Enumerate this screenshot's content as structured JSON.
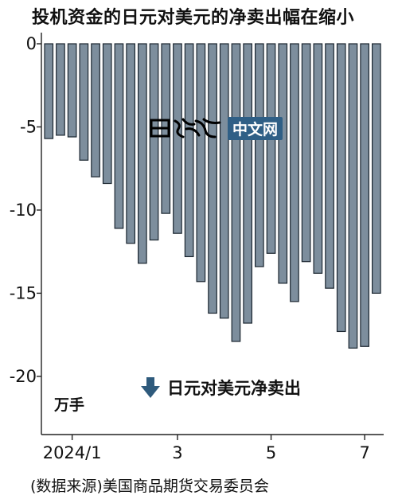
{
  "title": "投机资金的日元对美元的净卖出幅在缩小",
  "unit_label": "万手",
  "legend_label": "日元对美元净卖出",
  "source_note": "(数据来源)美国商品期货交易委员会",
  "watermark": {
    "logo_text": "日經",
    "tag_text": "中文网"
  },
  "chart_data": {
    "type": "bar",
    "title": "投机资金的日元对美元的净卖出幅在缩小",
    "xlabel": "",
    "ylabel": "万手",
    "ylim": [
      -23.5,
      0
    ],
    "yticks": [
      0,
      -5,
      -10,
      -15,
      -20
    ],
    "ytick_labels": [
      "0",
      "-5",
      "-10",
      "-15",
      "-20"
    ],
    "xtick_labels": [
      {
        "index": 2,
        "label": "2024/1"
      },
      {
        "index": 11,
        "label": "3"
      },
      {
        "index": 19,
        "label": "5"
      },
      {
        "index": 27,
        "label": "7"
      }
    ],
    "series": [
      {
        "values": [
          -5.7,
          -5.5,
          -5.6,
          -7.0,
          -8.0,
          -8.4,
          -11.1,
          -12.0,
          -13.2,
          -11.8,
          -10.2,
          -11.4,
          -12.8,
          -14.3,
          -16.2,
          -16.5,
          -17.9,
          -16.8,
          -13.4,
          -12.6,
          -14.4,
          -15.5,
          -13.1,
          -13.8,
          -14.7,
          -17.3,
          -18.3,
          -18.2,
          -15.0
        ],
        "color": "#7d8e9d"
      }
    ],
    "grid": false
  },
  "colors": {
    "bar_fill": "#7d8e9d",
    "bar_stroke": "#1b2630",
    "axis": "#222222",
    "legend_arrow": "#2e5a7c"
  }
}
